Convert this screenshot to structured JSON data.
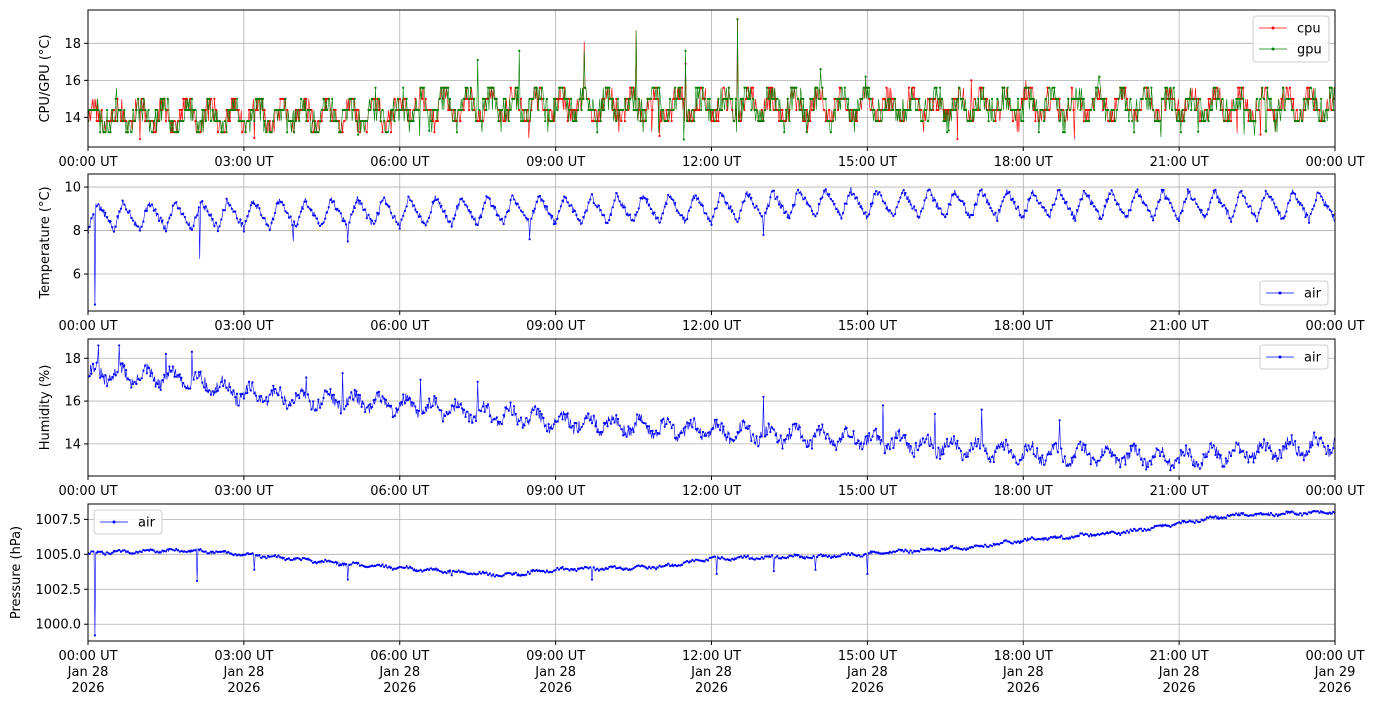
{
  "chart_data": [
    {
      "type": "line",
      "ylabel": "CPU/GPU (°C)",
      "ylim": [
        12.4,
        19.8
      ],
      "yticks": [
        14,
        16,
        18
      ],
      "ytick_labels": [
        "14",
        "16",
        "18"
      ],
      "xtick_labels": [
        "00:00 UT",
        "03:00 UT",
        "06:00 UT",
        "09:00 UT",
        "12:00 UT",
        "15:00 UT",
        "18:00 UT",
        "21:00 UT",
        "00:00 UT"
      ],
      "x_range_hours": [
        0,
        24
      ],
      "grid": true,
      "legend": "top-right",
      "pattern": "quantized",
      "series": [
        {
          "name": "cpu",
          "color": "#ff0000",
          "base": 14.1,
          "amp": 0.6,
          "period_h": 0.45,
          "noise": 0.6,
          "step": 0.6,
          "lift_h": [
            6,
            24
          ],
          "lift": 0.5,
          "seed": 11,
          "spikes": [
            [
              9.55,
              18.1
            ],
            [
              10.55,
              18.7
            ],
            [
              11.5,
              16.9
            ],
            [
              12.5,
              19.3
            ],
            [
              17.0,
              16.0
            ],
            [
              18.05,
              16.0
            ]
          ]
        },
        {
          "name": "gpu",
          "color": "#008000",
          "base": 14.1,
          "amp": 0.6,
          "period_h": 0.45,
          "noise": 0.7,
          "step": 0.6,
          "lift_h": [
            6,
            24
          ],
          "lift": 0.55,
          "seed": 23,
          "spikes": [
            [
              7.5,
              17.1
            ],
            [
              8.3,
              17.6
            ],
            [
              9.55,
              17.6
            ],
            [
              10.55,
              18.7
            ],
            [
              11.5,
              17.6
            ],
            [
              12.5,
              19.3
            ],
            [
              14.1,
              16.6
            ]
          ]
        }
      ]
    },
    {
      "type": "line",
      "ylabel": "Temperature (°C)",
      "ylim": [
        4.3,
        10.6
      ],
      "yticks": [
        6,
        8,
        10
      ],
      "ytick_labels": [
        "6",
        "8",
        "10"
      ],
      "xtick_labels": [
        "00:00 UT",
        "03:00 UT",
        "06:00 UT",
        "09:00 UT",
        "12:00 UT",
        "15:00 UT",
        "18:00 UT",
        "21:00 UT",
        "00:00 UT"
      ],
      "x_range_hours": [
        0,
        24
      ],
      "grid": true,
      "legend": "bottom-right",
      "pattern": "sawtooth",
      "series": [
        {
          "name": "air",
          "color": "#0000ff",
          "base": 8.0,
          "amp": 1.3,
          "period_h": 0.5,
          "noise": 0.15,
          "drift": [
            [
              0,
              8.0
            ],
            [
              6,
              8.2
            ],
            [
              12,
              8.4
            ],
            [
              14,
              8.6
            ],
            [
              24,
              8.5
            ]
          ],
          "seed": 5,
          "spikes": [
            [
              0.13,
              4.6
            ],
            [
              2.15,
              6.7
            ],
            [
              3.95,
              7.5
            ],
            [
              5.0,
              7.5
            ],
            [
              8.5,
              7.6
            ],
            [
              13.0,
              7.8
            ]
          ]
        }
      ]
    },
    {
      "type": "line",
      "ylabel": "Humidity (%)",
      "ylim": [
        12.5,
        18.9
      ],
      "yticks": [
        14,
        16,
        18
      ],
      "ytick_labels": [
        "14",
        "16",
        "18"
      ],
      "xtick_labels": [
        "00:00 UT",
        "03:00 UT",
        "06:00 UT",
        "09:00 UT",
        "12:00 UT",
        "15:00 UT",
        "18:00 UT",
        "21:00 UT",
        "00:00 UT"
      ],
      "x_range_hours": [
        0,
        24
      ],
      "grid": true,
      "legend": "top-right",
      "pattern": "wavy",
      "series": [
        {
          "name": "air",
          "color": "#0000ff",
          "amp": 0.35,
          "period_h": 0.5,
          "noise": 0.3,
          "seed": 31,
          "drift": [
            [
              0,
              17.3
            ],
            [
              2,
              17.0
            ],
            [
              3,
              16.3
            ],
            [
              6,
              15.8
            ],
            [
              9,
              15.1
            ],
            [
              12,
              14.6
            ],
            [
              15,
              14.2
            ],
            [
              18,
              13.6
            ],
            [
              21,
              13.3
            ],
            [
              24,
              14.0
            ]
          ],
          "spikes": [
            [
              0.2,
              18.6
            ],
            [
              0.6,
              18.6
            ],
            [
              1.5,
              18.2
            ],
            [
              2.0,
              18.3
            ],
            [
              4.2,
              17.1
            ],
            [
              4.9,
              17.3
            ],
            [
              6.4,
              17.0
            ],
            [
              7.5,
              16.9
            ],
            [
              13.0,
              16.2
            ],
            [
              15.3,
              15.8
            ],
            [
              16.3,
              15.4
            ],
            [
              17.2,
              15.6
            ],
            [
              18.7,
              15.1
            ]
          ]
        }
      ]
    },
    {
      "type": "line",
      "ylabel": "Pressure (hPa)",
      "ylim": [
        998.8,
        1008.6
      ],
      "yticks": [
        1000.0,
        1002.5,
        1005.0,
        1007.5
      ],
      "ytick_labels": [
        "1000.0",
        "1002.5",
        "1005.0",
        "1007.5"
      ],
      "xtick_labels": [
        "00:00 UT\nJan 28\n2026",
        "03:00 UT\nJan 28\n2026",
        "06:00 UT\nJan 28\n2026",
        "09:00 UT\nJan 28\n2026",
        "12:00 UT\nJan 28\n2026",
        "15:00 UT\nJan 28\n2026",
        "18:00 UT\nJan 28\n2026",
        "21:00 UT\nJan 28\n2026",
        "00:00 UT\nJan 29\n2026"
      ],
      "x_range_hours": [
        0,
        24
      ],
      "grid": true,
      "legend": "top-left",
      "pattern": "smooth",
      "series": [
        {
          "name": "air",
          "color": "#0000ff",
          "amp": 0.08,
          "period_h": 0.5,
          "noise": 0.1,
          "seed": 47,
          "drift": [
            [
              0,
              1005.1
            ],
            [
              2,
              1005.3
            ],
            [
              3,
              1005.0
            ],
            [
              5,
              1004.3
            ],
            [
              8,
              1003.5
            ],
            [
              9,
              1003.9
            ],
            [
              11,
              1004.1
            ],
            [
              12,
              1004.7
            ],
            [
              14.5,
              1004.9
            ],
            [
              16,
              1005.3
            ],
            [
              17,
              1005.5
            ],
            [
              18,
              1006.0
            ],
            [
              20,
              1006.6
            ],
            [
              21,
              1007.2
            ],
            [
              22,
              1007.8
            ],
            [
              24,
              1008.0
            ]
          ],
          "spikes": [
            [
              0.13,
              999.2
            ],
            [
              2.1,
              1003.1
            ],
            [
              3.2,
              1003.9
            ],
            [
              5.0,
              1003.2
            ],
            [
              7.0,
              1003.5
            ],
            [
              9.7,
              1003.2
            ],
            [
              12.1,
              1003.6
            ],
            [
              13.2,
              1003.8
            ],
            [
              14.0,
              1003.9
            ],
            [
              15.0,
              1003.6
            ]
          ]
        }
      ]
    }
  ]
}
